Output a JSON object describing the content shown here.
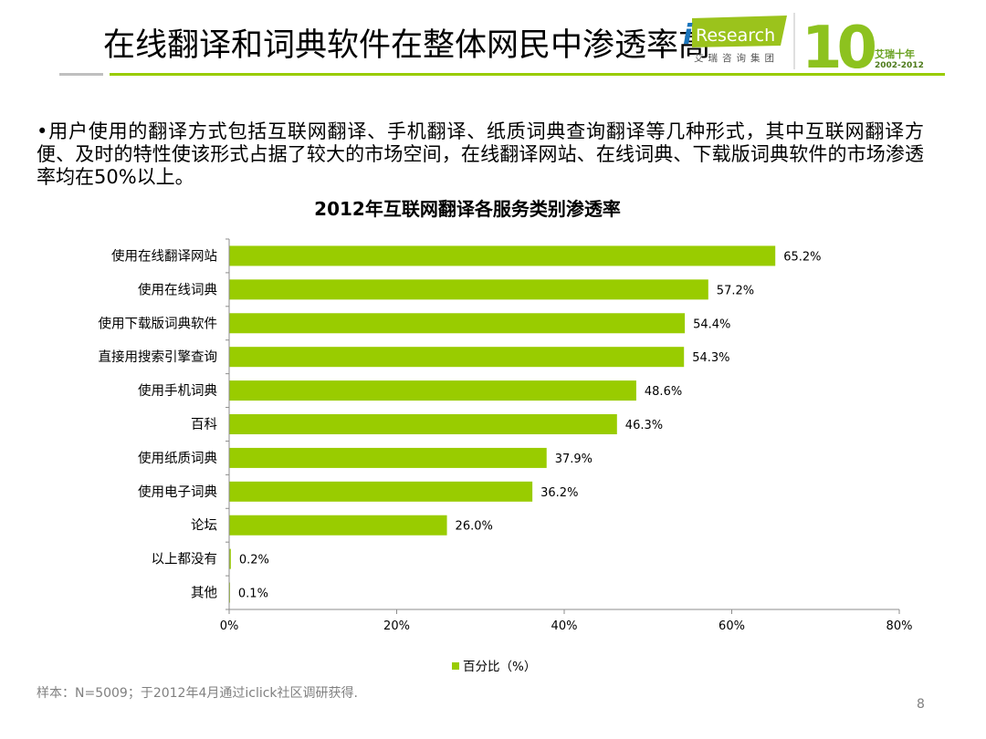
{
  "slide": {
    "title": "在线翻译和词典软件在整体网民中渗透率高",
    "bullet": "•用户使用的翻译方式包括互联网翻译、手机翻译、纸质词典查询翻译等几种形式，其中互联网翻译方便、及时的特性使该形式占据了较大的市场空间，在线翻译网站、在线词典、下载版词典软件的市场渗透率均在50%以上。",
    "footnote": "样本：N=5009；于2012年4月通过iclick社区调研获得.",
    "page_number": "8"
  },
  "logo": {
    "brand_prefix": "i",
    "brand_name": "Research",
    "group_name": "艾瑞咨询集团",
    "anniversary_number": "10",
    "anniversary_label": "艾瑞十年",
    "anniversary_years": "2002-2012"
  },
  "colors": {
    "accent_green": "#99cc00",
    "divider_gray": "#bfbfbf",
    "muted_text": "#808080"
  },
  "chart_data": {
    "type": "bar",
    "orientation": "horizontal",
    "title": "2012年互联网翻译各服务类别渗透率",
    "categories": [
      "使用在线翻译网站",
      "使用在线词典",
      "使用下载版词典软件",
      "直接用搜索引擎查询",
      "使用手机词典",
      "百科",
      "使用纸质词典",
      "使用电子词典",
      "论坛",
      "以上都没有",
      "其他"
    ],
    "series": [
      {
        "name": "百分比（%）",
        "values": [
          65.2,
          57.2,
          54.4,
          54.3,
          48.6,
          46.3,
          37.9,
          36.2,
          26.0,
          0.2,
          0.1
        ]
      }
    ],
    "data_labels": [
      "65.2%",
      "57.2%",
      "54.4%",
      "54.3%",
      "48.6%",
      "46.3%",
      "37.9%",
      "36.2%",
      "26.0%",
      "0.2%",
      "0.1%"
    ],
    "xlim": [
      0,
      80
    ],
    "x_ticks": [
      0,
      20,
      40,
      60,
      80
    ],
    "x_tick_labels": [
      "0%",
      "20%",
      "40%",
      "60%",
      "80%"
    ],
    "grid": false,
    "legend": "bottom",
    "bar_color": "#99cc00"
  }
}
